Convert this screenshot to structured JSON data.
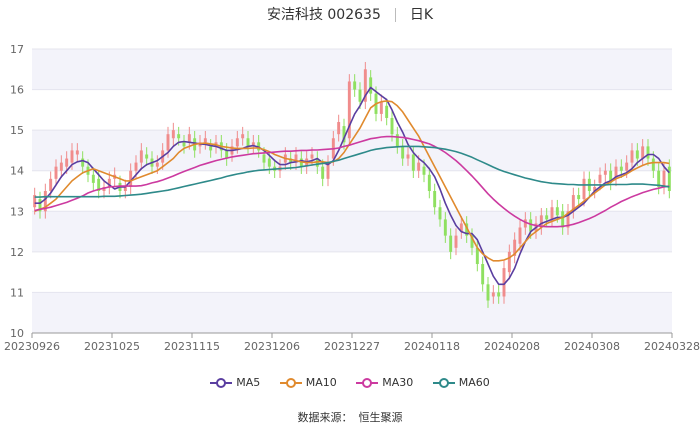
{
  "header": {
    "stock_name": "安洁科技 002635",
    "period": "日K"
  },
  "source": {
    "label": "数据来源：",
    "value": "恒生聚源"
  },
  "colors": {
    "up": "#f08c8c",
    "down": "#8fe060",
    "ma5": "#5a3ea0",
    "ma10": "#e08a2e",
    "ma30": "#cc3aa0",
    "ma60": "#2e8a8a",
    "band": "#f3f3fa",
    "grid": "#e4e4ee"
  },
  "chart_data": {
    "type": "candlestick",
    "title": "安洁科技 002635 日K",
    "ylim": [
      10,
      17
    ],
    "yticks": [
      10,
      11,
      12,
      13,
      14,
      15,
      16,
      17
    ],
    "xtick_labels": [
      "20230926",
      "20231025",
      "20231115",
      "20231206",
      "20231227",
      "20240118",
      "20240208",
      "20240308",
      "20240328"
    ],
    "legend": [
      "MA5",
      "MA10",
      "MA30",
      "MA60"
    ],
    "candles": [
      [
        13.1,
        13.4
      ],
      [
        13.3,
        13.0
      ],
      [
        13.0,
        13.5
      ],
      [
        13.5,
        13.8
      ],
      [
        13.8,
        14.1
      ],
      [
        14.0,
        14.2
      ],
      [
        14.1,
        14.3
      ],
      [
        14.2,
        14.5
      ],
      [
        14.4,
        14.5
      ],
      [
        14.3,
        14.1
      ],
      [
        14.1,
        13.9
      ],
      [
        13.9,
        13.7
      ],
      [
        13.8,
        13.5
      ],
      [
        13.5,
        13.6
      ],
      [
        13.6,
        13.8
      ],
      [
        13.8,
        13.9
      ],
      [
        13.7,
        13.5
      ],
      [
        13.5,
        13.6
      ],
      [
        13.6,
        14.0
      ],
      [
        14.0,
        14.2
      ],
      [
        14.2,
        14.5
      ],
      [
        14.4,
        14.3
      ],
      [
        14.3,
        14.1
      ],
      [
        14.1,
        14.2
      ],
      [
        14.2,
        14.5
      ],
      [
        14.5,
        14.9
      ],
      [
        14.8,
        15.0
      ],
      [
        14.9,
        14.8
      ],
      [
        14.7,
        14.6
      ],
      [
        14.7,
        14.9
      ],
      [
        14.8,
        14.5
      ],
      [
        14.6,
        14.7
      ],
      [
        14.7,
        14.8
      ],
      [
        14.6,
        14.5
      ],
      [
        14.6,
        14.7
      ],
      [
        14.7,
        14.5
      ],
      [
        14.5,
        14.3
      ],
      [
        14.4,
        14.6
      ],
      [
        14.6,
        14.8
      ],
      [
        14.8,
        14.9
      ],
      [
        14.8,
        14.6
      ],
      [
        14.6,
        14.7
      ],
      [
        14.7,
        14.5
      ],
      [
        14.4,
        14.2
      ],
      [
        14.3,
        14.1
      ],
      [
        14.1,
        14.0
      ],
      [
        14.0,
        14.1
      ],
      [
        14.2,
        14.4
      ],
      [
        14.3,
        14.2
      ],
      [
        14.2,
        14.4
      ],
      [
        14.3,
        14.1
      ],
      [
        14.1,
        14.3
      ],
      [
        14.3,
        14.4
      ],
      [
        14.3,
        14.1
      ],
      [
        14.1,
        13.8
      ],
      [
        13.8,
        14.2
      ],
      [
        14.3,
        14.8
      ],
      [
        14.9,
        15.2
      ],
      [
        15.1,
        14.7
      ],
      [
        14.8,
        16.2
      ],
      [
        16.2,
        16.0
      ],
      [
        16.0,
        15.7
      ],
      [
        15.7,
        16.5
      ],
      [
        16.3,
        15.9
      ],
      [
        15.9,
        15.4
      ],
      [
        15.4,
        15.7
      ],
      [
        15.6,
        15.3
      ],
      [
        15.3,
        14.9
      ],
      [
        14.9,
        14.6
      ],
      [
        14.6,
        14.3
      ],
      [
        14.3,
        14.4
      ],
      [
        14.4,
        14.0
      ],
      [
        14.0,
        14.2
      ],
      [
        14.1,
        13.9
      ],
      [
        13.9,
        13.5
      ],
      [
        13.5,
        13.1
      ],
      [
        13.1,
        12.8
      ],
      [
        12.8,
        12.4
      ],
      [
        12.4,
        12.0
      ],
      [
        12.1,
        12.4
      ],
      [
        12.5,
        12.7
      ],
      [
        12.7,
        12.4
      ],
      [
        12.4,
        12.1
      ],
      [
        12.1,
        11.7
      ],
      [
        11.7,
        11.2
      ],
      [
        11.2,
        10.8
      ],
      [
        10.9,
        11.0
      ],
      [
        11.0,
        10.9
      ],
      [
        10.9,
        11.6
      ],
      [
        11.5,
        12.0
      ],
      [
        11.9,
        12.3
      ],
      [
        12.2,
        12.6
      ],
      [
        12.6,
        12.8
      ],
      [
        12.8,
        12.5
      ],
      [
        12.5,
        12.7
      ],
      [
        12.6,
        12.9
      ],
      [
        12.9,
        12.8
      ],
      [
        12.8,
        13.1
      ],
      [
        13.1,
        12.9
      ],
      [
        13.0,
        12.6
      ],
      [
        12.6,
        13.0
      ],
      [
        13.0,
        13.4
      ],
      [
        13.4,
        13.3
      ],
      [
        13.3,
        13.8
      ],
      [
        13.8,
        13.5
      ],
      [
        13.5,
        13.6
      ],
      [
        13.7,
        13.9
      ],
      [
        13.9,
        14.0
      ],
      [
        14.0,
        13.7
      ],
      [
        13.8,
        14.1
      ],
      [
        14.1,
        14.0
      ],
      [
        14.0,
        14.2
      ],
      [
        14.2,
        14.5
      ],
      [
        14.5,
        14.3
      ],
      [
        14.3,
        14.6
      ],
      [
        14.6,
        14.3
      ],
      [
        14.3,
        14.0
      ],
      [
        14.0,
        13.6
      ],
      [
        13.6,
        14.0
      ],
      [
        14.1,
        13.5
      ]
    ],
    "series": [
      {
        "name": "MA5",
        "values": [
          13.2,
          13.2,
          13.3,
          13.45,
          13.65,
          13.85,
          14.0,
          14.15,
          14.22,
          14.25,
          14.2,
          14.05,
          13.9,
          13.75,
          13.65,
          13.55,
          13.6,
          13.6,
          13.75,
          13.9,
          14.05,
          14.15,
          14.2,
          14.25,
          14.35,
          14.45,
          14.6,
          14.7,
          14.72,
          14.7,
          14.68,
          14.66,
          14.65,
          14.62,
          14.6,
          14.55,
          14.5,
          14.5,
          14.52,
          14.55,
          14.6,
          14.62,
          14.58,
          14.5,
          14.38,
          14.25,
          14.15,
          14.15,
          14.2,
          14.22,
          14.25,
          14.22,
          14.25,
          14.3,
          14.2,
          14.15,
          14.25,
          14.5,
          14.8,
          15.1,
          15.4,
          15.6,
          15.85,
          16.05,
          15.95,
          15.85,
          15.75,
          15.5,
          15.2,
          14.95,
          14.65,
          14.45,
          14.3,
          14.2,
          14.05,
          13.85,
          13.55,
          13.2,
          12.9,
          12.65,
          12.5,
          12.45,
          12.45,
          12.3,
          12.0,
          11.7,
          11.4,
          11.2,
          11.2,
          11.35,
          11.6,
          11.95,
          12.25,
          12.5,
          12.6,
          12.7,
          12.75,
          12.8,
          12.85,
          12.85,
          12.9,
          13.0,
          13.1,
          13.2,
          13.35,
          13.5,
          13.6,
          13.7,
          13.75,
          13.85,
          13.9,
          13.95,
          14.05,
          14.2,
          14.3,
          14.4,
          14.4,
          14.3,
          14.1,
          13.95
        ]
      },
      {
        "name": "MA10",
        "values": [
          13.0,
          13.05,
          13.1,
          13.2,
          13.3,
          13.45,
          13.6,
          13.75,
          13.85,
          13.95,
          14.0,
          14.05,
          14.0,
          13.95,
          13.9,
          13.85,
          13.8,
          13.75,
          13.75,
          13.8,
          13.85,
          13.9,
          13.95,
          14.0,
          14.1,
          14.2,
          14.3,
          14.45,
          14.55,
          14.6,
          14.65,
          14.67,
          14.68,
          14.66,
          14.64,
          14.6,
          14.58,
          14.56,
          14.55,
          14.55,
          14.55,
          14.56,
          14.56,
          14.52,
          14.47,
          14.4,
          14.35,
          14.3,
          14.28,
          14.25,
          14.22,
          14.2,
          14.2,
          14.22,
          14.22,
          14.2,
          14.22,
          14.3,
          14.45,
          14.65,
          14.85,
          15.05,
          15.3,
          15.55,
          15.65,
          15.7,
          15.72,
          15.7,
          15.6,
          15.45,
          15.25,
          15.05,
          14.85,
          14.6,
          14.35,
          14.1,
          13.85,
          13.6,
          13.35,
          13.1,
          12.85,
          12.6,
          12.35,
          12.1,
          11.95,
          11.85,
          11.78,
          11.78,
          11.8,
          11.85,
          11.95,
          12.1,
          12.25,
          12.4,
          12.5,
          12.6,
          12.7,
          12.75,
          12.8,
          12.85,
          12.95,
          13.05,
          13.15,
          13.25,
          13.35,
          13.45,
          13.55,
          13.65,
          13.72,
          13.8,
          13.85,
          13.92,
          14.0,
          14.07,
          14.13,
          14.18,
          14.2,
          14.2,
          14.2,
          14.18
        ]
      },
      {
        "name": "MA30",
        "values": [
          13.02,
          13.05,
          13.07,
          13.1,
          13.14,
          13.18,
          13.22,
          13.27,
          13.32,
          13.38,
          13.45,
          13.5,
          13.54,
          13.57,
          13.6,
          13.61,
          13.62,
          13.62,
          13.62,
          13.62,
          13.63,
          13.66,
          13.7,
          13.73,
          13.77,
          13.82,
          13.87,
          13.93,
          13.98,
          14.03,
          14.08,
          14.13,
          14.17,
          14.21,
          14.25,
          14.28,
          14.31,
          14.34,
          14.36,
          14.38,
          14.4,
          14.42,
          14.43,
          14.44,
          14.45,
          14.46,
          14.47,
          14.48,
          14.48,
          14.49,
          14.5,
          14.5,
          14.51,
          14.51,
          14.52,
          14.53,
          14.54,
          14.56,
          14.6,
          14.63,
          14.67,
          14.71,
          14.75,
          14.79,
          14.81,
          14.83,
          14.84,
          14.84,
          14.83,
          14.82,
          14.8,
          14.77,
          14.74,
          14.7,
          14.66,
          14.6,
          14.53,
          14.45,
          14.35,
          14.25,
          14.13,
          14.0,
          13.87,
          13.73,
          13.58,
          13.43,
          13.3,
          13.18,
          13.07,
          12.97,
          12.88,
          12.8,
          12.73,
          12.68,
          12.65,
          12.63,
          12.62,
          12.62,
          12.62,
          12.63,
          12.65,
          12.68,
          12.72,
          12.77,
          12.82,
          12.88,
          12.95,
          13.02,
          13.1,
          13.17,
          13.24,
          13.3,
          13.36,
          13.41,
          13.46,
          13.5,
          13.54,
          13.57,
          13.6,
          13.62
        ]
      },
      {
        "name": "MA60",
        "values": [
          13.35,
          13.35,
          13.36,
          13.36,
          13.36,
          13.36,
          13.36,
          13.36,
          13.36,
          13.36,
          13.36,
          13.36,
          13.36,
          13.37,
          13.37,
          13.37,
          13.38,
          13.39,
          13.4,
          13.41,
          13.42,
          13.44,
          13.46,
          13.48,
          13.5,
          13.52,
          13.55,
          13.58,
          13.61,
          13.64,
          13.67,
          13.7,
          13.73,
          13.76,
          13.79,
          13.82,
          13.86,
          13.89,
          13.92,
          13.94,
          13.97,
          13.99,
          14.01,
          14.02,
          14.03,
          14.04,
          14.05,
          14.06,
          14.07,
          14.08,
          14.1,
          14.12,
          14.14,
          14.16,
          14.18,
          14.2,
          14.23,
          14.26,
          14.3,
          14.34,
          14.38,
          14.42,
          14.46,
          14.5,
          14.53,
          14.55,
          14.57,
          14.58,
          14.59,
          14.6,
          14.6,
          14.6,
          14.6,
          14.59,
          14.58,
          14.57,
          14.55,
          14.53,
          14.5,
          14.47,
          14.43,
          14.38,
          14.33,
          14.27,
          14.21,
          14.15,
          14.09,
          14.03,
          13.98,
          13.94,
          13.9,
          13.86,
          13.82,
          13.79,
          13.76,
          13.73,
          13.71,
          13.69,
          13.68,
          13.67,
          13.66,
          13.66,
          13.65,
          13.65,
          13.65,
          13.65,
          13.65,
          13.65,
          13.66,
          13.66,
          13.66,
          13.66,
          13.67,
          13.67,
          13.67,
          13.66,
          13.65,
          13.64,
          13.62,
          13.6
        ]
      }
    ]
  }
}
